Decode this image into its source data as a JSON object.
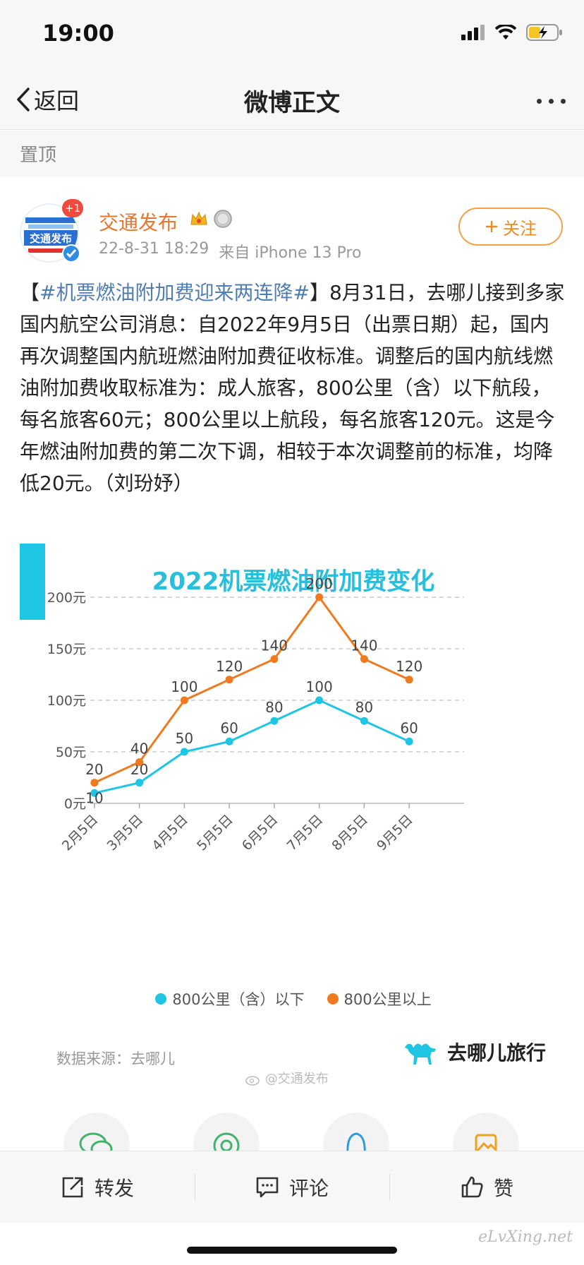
{
  "status_bar": {
    "time": "19:00"
  },
  "nav": {
    "back_label": "返回",
    "title": "微博正文"
  },
  "pinned": {
    "label": "置顶"
  },
  "author": {
    "name": "交通发布",
    "avatar_badge": "+1",
    "avatar_text": "交通发布",
    "timestamp": "22-8-31 18:29",
    "source": "来自 iPhone 13 Pro",
    "follow_label": "关注"
  },
  "post": {
    "open_bracket": "【",
    "hashtag": "#机票燃油附加费迎来两连降#",
    "body": "】8月31日，去哪儿接到多家国内航空公司消息：自2022年9月5日（出票日期）起，国内再次调整国内航班燃油附加费征收标准。调整后的国内航线燃油附加费收取标准为：成人旅客，800公里（含）以下航段，每名旅客60元；800公里以上航段，每名旅客120元。这是今年燃油附加费的第二次下调，相较于本次调整前的标准，均降低20元。（刘玢妤）"
  },
  "chart_data": {
    "type": "line",
    "title": "2022机票燃油附加费变化",
    "categories": [
      "2月5日",
      "3月5日",
      "4月5日",
      "5月5日",
      "6月5日",
      "7月5日",
      "8月5日",
      "9月5日"
    ],
    "y_ticks": [
      "0元",
      "50元",
      "100元",
      "150元",
      "200元"
    ],
    "ylim": [
      0,
      200
    ],
    "grid": true,
    "legend_position": "bottom",
    "series": [
      {
        "name": "800公里（含）以下",
        "color": "#1ec6e4",
        "values": [
          10,
          20,
          50,
          60,
          80,
          100,
          80,
          60
        ]
      },
      {
        "name": "800公里以上",
        "color": "#f07a20",
        "values": [
          20,
          40,
          100,
          120,
          140,
          200,
          140,
          120
        ]
      }
    ],
    "source": "数据来源：去哪儿",
    "brand": "去哪儿旅行",
    "watermark": "@交通发布"
  },
  "actions": {
    "repost": "转发",
    "comment": "评论",
    "like": "赞"
  },
  "corner_watermark": "eLvXing.net"
}
